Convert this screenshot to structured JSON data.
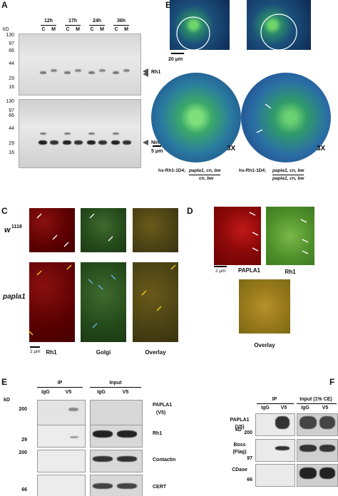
{
  "panel_a": {
    "label": "A",
    "kd": "kD",
    "timepoints": [
      "12h",
      "17h",
      "24h",
      "36h"
    ],
    "fractions": [
      "C",
      "M"
    ],
    "blot_top_markers": [
      "130",
      "97",
      "66",
      "44",
      "29",
      "16"
    ],
    "blot_top_band": "Rh1",
    "blot_bottom_markers": [
      "130",
      "97",
      "66",
      "44",
      "29",
      "16"
    ],
    "blot_bottom_band": "NinaA"
  },
  "panel_b": {
    "label": "B",
    "scale_top": "20 μm",
    "scale_zoom": "5 μm",
    "zoom": [
      "3X",
      "3X"
    ],
    "genotypes": [
      {
        "prefix": "hs-Rh1-1D4;",
        "numerator": "papla1, cn, bw",
        "denominator": "cn, bw"
      },
      {
        "prefix": "hs-Rh1-1D4;",
        "numerator": "papla1, cn, bw",
        "denominator": "papla1, cn, bw"
      }
    ]
  },
  "panel_c": {
    "label": "C",
    "rows": [
      {
        "gene": "w",
        "superscript": "1118"
      },
      {
        "gene": "papla1"
      }
    ],
    "scale": "2 μm",
    "columns": [
      "Rh1",
      "Golgi",
      "Overlay"
    ]
  },
  "panel_d": {
    "label": "D",
    "scale": "2 μm",
    "channels": [
      "PAPLA1",
      "Rh1"
    ],
    "overlay": "Overlay"
  },
  "panel_e": {
    "label": "E",
    "groups": [
      "IP",
      "Input"
    ],
    "lanes": [
      "IgG",
      "V5"
    ],
    "kd": "kD",
    "markers": [
      "200",
      "29",
      "200",
      "66"
    ],
    "blots": [
      [
        "PAPLA1",
        "(V5)"
      ],
      [
        "Rh1"
      ],
      [
        "Contactin"
      ],
      [
        "CERT"
      ]
    ]
  },
  "panel_f": {
    "label": "F",
    "groups": [
      "IP",
      "Input (1% CE)"
    ],
    "lanes": [
      "IgG",
      "V5"
    ],
    "kd": "kD",
    "markers": [
      "200",
      "97",
      "66"
    ],
    "blots": [
      [
        "PAPLA1",
        "(V5)"
      ],
      [
        "Boss",
        "(Flag)"
      ],
      [
        "CDase"
      ]
    ]
  }
}
